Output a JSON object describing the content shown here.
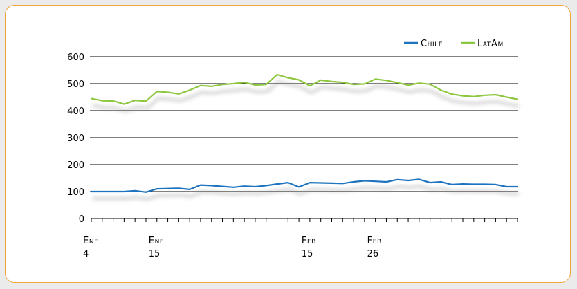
{
  "chart_data": {
    "type": "line",
    "ylim": [
      0,
      600
    ],
    "yticks": [
      "0",
      "100",
      "200",
      "300",
      "400",
      "500",
      "600"
    ],
    "x_labels": [
      {
        "index": 0,
        "line1": "Ene",
        "line2": "4"
      },
      {
        "index": 6,
        "line1": "Ene",
        "line2": "15"
      },
      {
        "index": 20,
        "line1": "Feb",
        "line2": "15"
      },
      {
        "index": 26,
        "line1": "Feb",
        "line2": "26"
      }
    ],
    "n_points": 40,
    "legend_position": "top-right",
    "series": [
      {
        "name": "Chile",
        "color": "#1e73be",
        "values": [
          100,
          100,
          100,
          100,
          103,
          98,
          110,
          111,
          112,
          108,
          124,
          122,
          119,
          116,
          120,
          118,
          122,
          128,
          133,
          117,
          133,
          132,
          131,
          130,
          136,
          140,
          138,
          136,
          144,
          141,
          145,
          133,
          136,
          126,
          128,
          127,
          127,
          126,
          118,
          118
        ]
      },
      {
        "name": "LatAm",
        "color": "#8dc63f",
        "values": [
          445,
          437,
          436,
          424,
          438,
          435,
          471,
          468,
          462,
          476,
          493,
          490,
          497,
          500,
          505,
          495,
          497,
          533,
          522,
          514,
          492,
          513,
          508,
          505,
          497,
          499,
          517,
          512,
          504,
          494,
          502,
          498,
          476,
          461,
          455,
          452,
          457,
          459,
          450,
          442
        ]
      }
    ]
  }
}
